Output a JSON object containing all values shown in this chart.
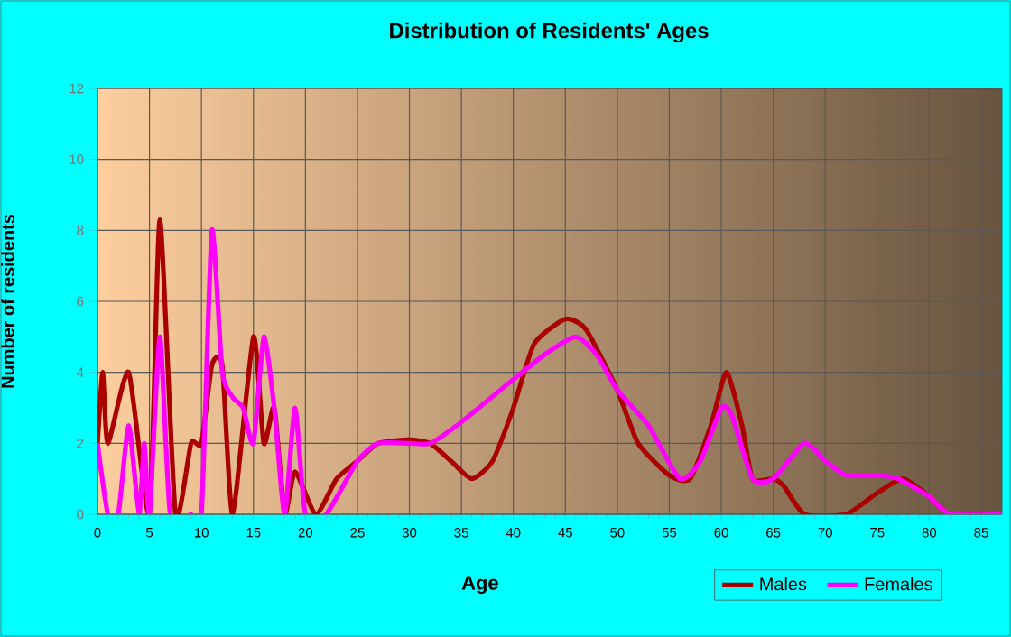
{
  "chart_data": {
    "type": "line",
    "title": "Distribution of Residents' Ages",
    "xlabel": "Age",
    "ylabel": "Number of residents",
    "xlim": [
      0,
      87
    ],
    "xticks": [
      0,
      5,
      10,
      15,
      20,
      25,
      30,
      35,
      40,
      45,
      50,
      55,
      60,
      65,
      70,
      75,
      80,
      85
    ],
    "ylim": [
      0,
      12
    ],
    "yticks": [
      0,
      2,
      4,
      6,
      8,
      10,
      12
    ],
    "grid": true,
    "legend": "bottom right",
    "marker": "none",
    "line_style": "solid",
    "series": [
      {
        "name": "Males",
        "color": "#aa0000",
        "x": [
          0,
          0.5,
          1,
          3,
          5,
          6,
          7.5,
          9,
          10,
          11,
          12,
          13,
          15,
          16,
          17,
          18,
          19,
          21,
          23,
          25,
          27,
          30,
          32,
          34,
          36,
          38,
          40,
          42,
          45,
          47,
          50,
          52,
          55,
          57,
          59,
          60.5,
          62,
          63,
          65,
          66,
          68,
          72,
          75,
          77.5,
          80,
          82,
          87
        ],
        "values": [
          2,
          4,
          2,
          4,
          0,
          8.3,
          0,
          2,
          2,
          4.2,
          4.2,
          0,
          5,
          2,
          3,
          0,
          1.2,
          0,
          1,
          1.5,
          2,
          2.1,
          2,
          1.5,
          1,
          1.5,
          3,
          4.8,
          5.5,
          5.2,
          3.5,
          2,
          1.1,
          1,
          2.5,
          4,
          2.5,
          1,
          1,
          0.8,
          0,
          0,
          0.6,
          1,
          0.5,
          0,
          0
        ]
      },
      {
        "name": "Females",
        "color": "#ff00ff",
        "x": [
          0,
          1,
          2,
          3,
          4,
          4.5,
          5,
          6,
          7,
          9,
          10,
          11,
          12,
          13,
          14,
          15,
          16,
          17,
          18,
          19,
          20,
          22,
          25,
          27,
          30,
          32,
          35,
          40,
          43,
          46,
          48,
          50,
          53,
          56,
          58,
          60,
          61,
          63,
          65,
          68,
          70,
          72,
          75,
          77,
          80,
          82,
          87
        ],
        "values": [
          2,
          0,
          0,
          2.5,
          0,
          2,
          0,
          5,
          0,
          0,
          0,
          8,
          4,
          3.3,
          3,
          2,
          5,
          3,
          0,
          3,
          0,
          0,
          1.5,
          2,
          2,
          2,
          2.6,
          3.8,
          4.5,
          5,
          4.5,
          3.5,
          2.5,
          1,
          1.5,
          3,
          2.8,
          1,
          1,
          2,
          1.5,
          1.1,
          1.1,
          1,
          0.5,
          0,
          0
        ]
      }
    ]
  }
}
